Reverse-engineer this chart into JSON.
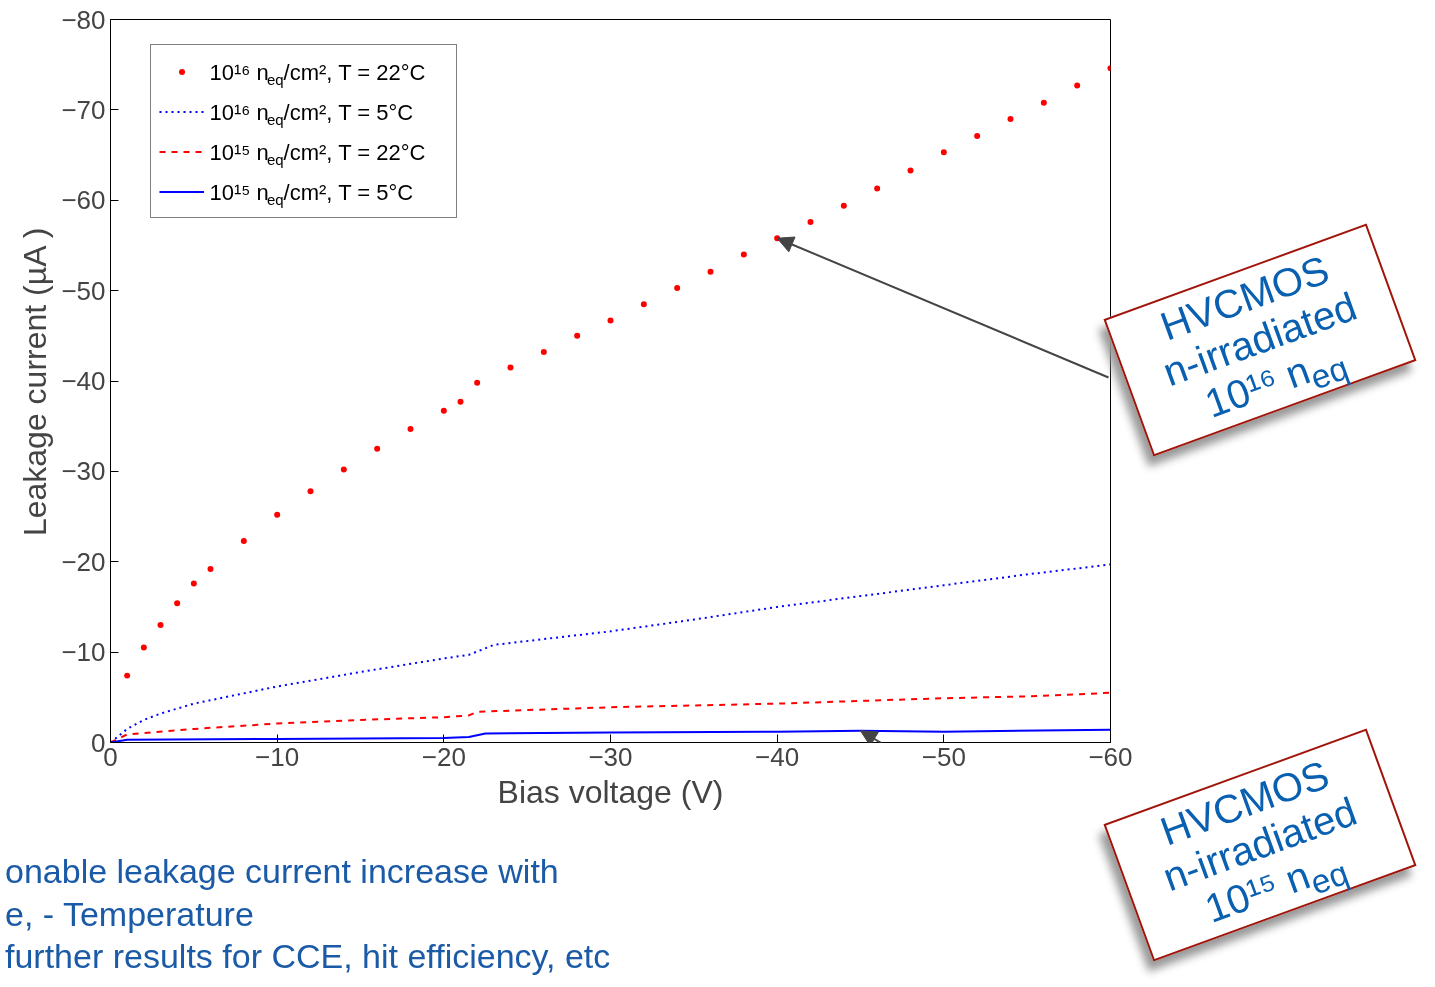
{
  "chart_data": {
    "type": "line",
    "xlabel": "Bias voltage (V)",
    "ylabel": "Leakage current (µA )",
    "xlim": [
      0,
      -60
    ],
    "ylim": [
      0,
      -80
    ],
    "xticks": [
      0,
      -10,
      -20,
      -30,
      -40,
      -50,
      -60
    ],
    "yticks": [
      0,
      -10,
      -20,
      -30,
      -40,
      -50,
      -60,
      -70,
      -80
    ],
    "grid": false,
    "legend": "top left",
    "series": [
      {
        "name": "10¹⁶ n$_{eq}$/cm², T = 22°C",
        "type": "scatter",
        "marker": "circle",
        "color": "#ff0000",
        "x": [
          -1,
          -2,
          -3,
          -4,
          -5,
          -6,
          -8,
          -10,
          -12,
          -14,
          -16,
          -18,
          -20,
          -21,
          -22,
          -24,
          -26,
          -28,
          -30,
          -32,
          -34,
          -36,
          -38,
          -40,
          -42,
          -44,
          -46,
          -48,
          -50,
          -52,
          -54,
          -56,
          -58,
          -60
        ],
        "values": [
          -7.4,
          -10.5,
          -13,
          -15.4,
          -17.6,
          -19.2,
          -22.3,
          -25.2,
          -27.8,
          -30.2,
          -32.5,
          -34.7,
          -36.7,
          -37.7,
          -39.8,
          -41.5,
          -43.2,
          -45,
          -46.7,
          -48.5,
          -50.3,
          -52.1,
          -54,
          -55.8,
          -57.6,
          -59.4,
          -61.3,
          -63.3,
          -65.3,
          -67.1,
          -69,
          -70.8,
          -72.7,
          -74.6
        ]
      },
      {
        "name": "10¹⁶ n$_{eq}$/cm², T = 5°C",
        "line_style": "dotted",
        "color": "#0000ff",
        "x": [
          0,
          -1,
          -2,
          -3,
          -5,
          -10,
          -15,
          -20,
          -21.5,
          -23,
          -30,
          -35,
          -40,
          -45,
          -50,
          -55,
          -60
        ],
        "values": [
          0,
          -1.5,
          -2.5,
          -3.2,
          -4.3,
          -6.2,
          -7.8,
          -9.3,
          -9.7,
          -10.8,
          -12.3,
          -13.6,
          -15,
          -16.2,
          -17.4,
          -18.6,
          -19.7
        ]
      },
      {
        "name": "10¹⁵ n$_{eq}$/cm², T = 22°C",
        "line_style": "dashed",
        "color": "#ff0000",
        "x": [
          0,
          -1,
          -5,
          -10,
          -15,
          -20,
          -21.5,
          -22,
          -30,
          -40,
          -45,
          -50,
          -55,
          -60
        ],
        "values": [
          0,
          -0.9,
          -1.5,
          -2.1,
          -2.5,
          -2.8,
          -3,
          -3.4,
          -3.9,
          -4.3,
          -4.6,
          -4.9,
          -5.1,
          -5.5
        ]
      },
      {
        "name": "10¹⁵ n$_{eq}$/cm², T = 5°C",
        "line_style": "solid",
        "color": "#0000ff",
        "x": [
          0,
          -1,
          -10,
          -20,
          -21.5,
          -22.5,
          -30,
          -40,
          -45,
          -50,
          -60
        ],
        "values": [
          0,
          -0.3,
          -0.4,
          -0.5,
          -0.6,
          -1,
          -1.1,
          -1.2,
          -1.3,
          -1.2,
          -1.4
        ]
      }
    ],
    "annotations": [
      {
        "text": "HVCMOS\nn-irradiated\n10¹⁶ n$_{eq}$",
        "x": -40,
        "y": -55.8
      },
      {
        "text": "HVCMOS\nn-irradiated\n10¹⁵ n$_{eq}$",
        "x": -45,
        "y": -1.3
      },
      "onable leakage current increase with\ne, - Temperature\nfurther results for CCE, hit efficiency, etc"
    ]
  }
}
